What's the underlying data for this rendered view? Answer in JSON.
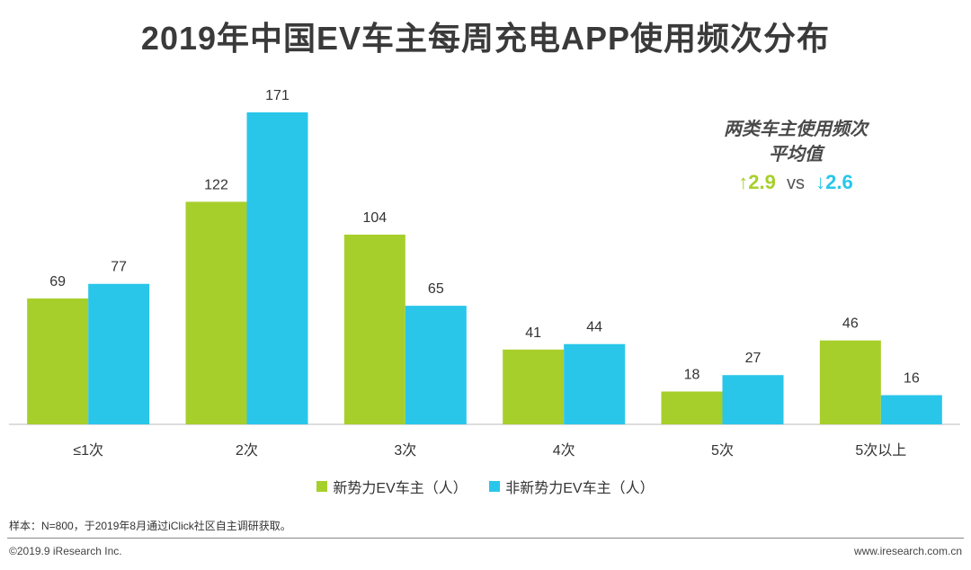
{
  "chart_data": {
    "type": "bar",
    "title": "2019年中国EV车主每周充电APP使用频次分布",
    "categories": [
      "≤1次",
      "2次",
      "3次",
      "4次",
      "5次",
      "5次以上"
    ],
    "series": [
      {
        "name": "新势力EV车主（人）",
        "color": "#a7cf2c",
        "values": [
          69,
          122,
          104,
          41,
          18,
          46
        ]
      },
      {
        "name": "非新势力EV车主（人）",
        "color": "#29c6ea",
        "values": [
          77,
          171,
          65,
          44,
          27,
          16
        ]
      }
    ],
    "ylim": [
      0,
      171
    ],
    "xlabel": "",
    "ylabel": "",
    "grid": false,
    "legend_position": "bottom"
  },
  "annotation": {
    "line1": "两类车主使用频次",
    "line2": "平均值",
    "up_arrow": "↑",
    "up_value": "2.9",
    "vs": "vs",
    "down_arrow": "↓",
    "down_value": "2.6"
  },
  "note": "样本：N=800，于2019年8月通过iClick社区自主调研获取。",
  "copyright": "©2019.9  iResearch Inc.",
  "site": "www.iresearch.com.cn"
}
